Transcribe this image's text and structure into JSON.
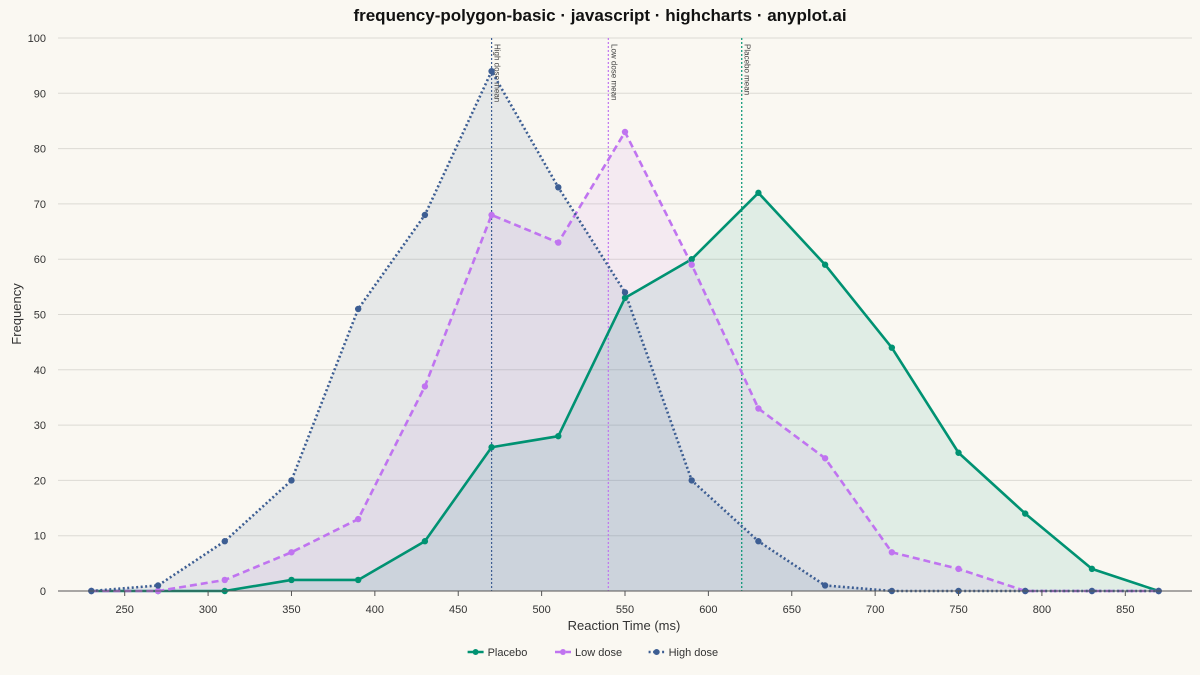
{
  "chart_data": {
    "type": "area",
    "title": "frequency-polygon-basic · javascript · highcharts · anyplot.ai",
    "xlabel": "Reaction Time (ms)",
    "ylabel": "Frequency",
    "xlim": [
      210,
      890
    ],
    "ylim": [
      0,
      100
    ],
    "x_ticks": [
      250,
      300,
      350,
      400,
      450,
      500,
      550,
      600,
      650,
      700,
      750,
      800,
      850
    ],
    "y_ticks": [
      0,
      10,
      20,
      30,
      40,
      50,
      60,
      70,
      80,
      90,
      100
    ],
    "grid": "horizontal",
    "legend_position": "bottom-center",
    "x": [
      230,
      270,
      310,
      350,
      390,
      430,
      470,
      510,
      550,
      590,
      630,
      670,
      710,
      750,
      790,
      830,
      870
    ],
    "series": [
      {
        "name": "Placebo",
        "color": "#009272",
        "dash": "solid",
        "values": [
          0,
          0,
          0,
          2,
          2,
          9,
          26,
          28,
          53,
          60,
          72,
          59,
          44,
          25,
          14,
          4,
          0
        ]
      },
      {
        "name": "Low dose",
        "color": "#c074f0",
        "dash": "dashed",
        "values": [
          0,
          0,
          2,
          7,
          13,
          37,
          68,
          63,
          83,
          59,
          33,
          24,
          7,
          4,
          0,
          0,
          0
        ]
      },
      {
        "name": "High dose",
        "color": "#3d5e93",
        "dash": "dotted",
        "values": [
          0,
          1,
          9,
          20,
          51,
          68,
          94,
          73,
          54,
          20,
          9,
          1,
          0,
          0,
          0,
          0,
          0
        ]
      }
    ],
    "mean_lines": [
      {
        "label": "High dose mean",
        "x": 470,
        "color": "#3d5e93"
      },
      {
        "label": "Low dose mean",
        "x": 540,
        "color": "#c074f0"
      },
      {
        "label": "Placebo mean",
        "x": 620,
        "color": "#009272"
      }
    ]
  }
}
